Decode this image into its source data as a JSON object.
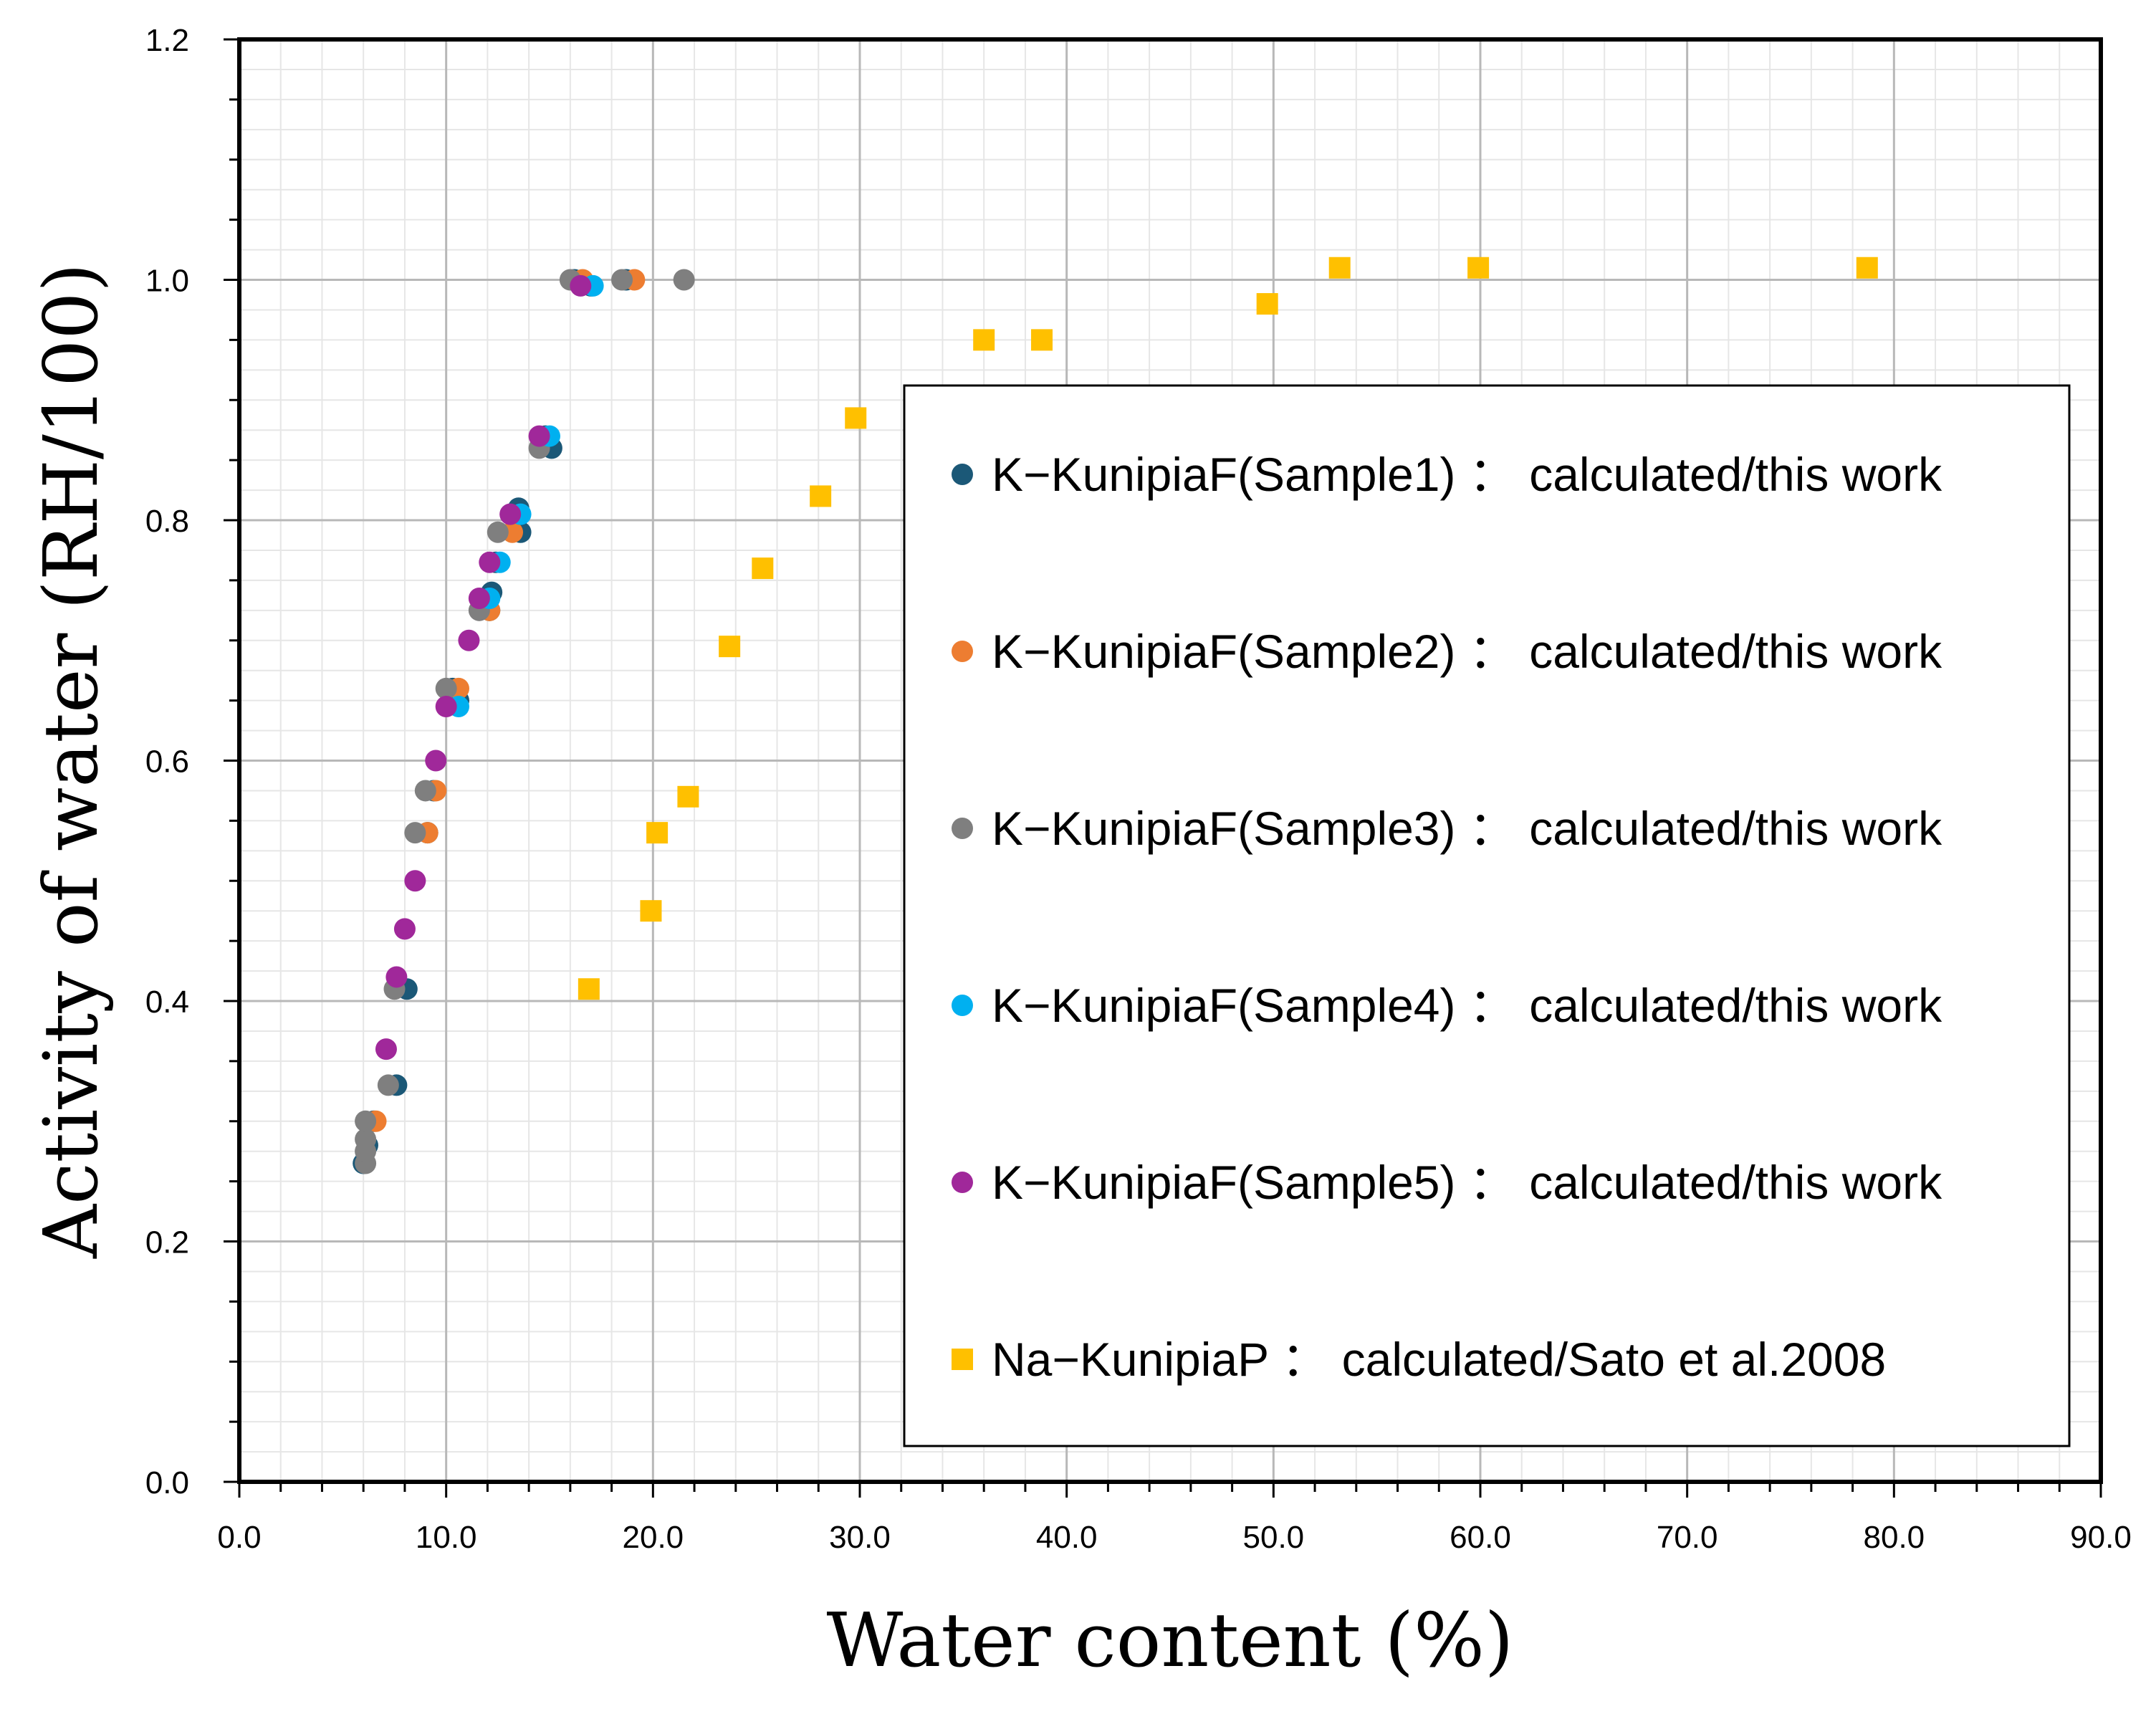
{
  "chart_data": {
    "type": "scatter",
    "title": "",
    "xlabel": "Water content (%)",
    "ylabel": "Activity of water (RH/100)",
    "xlim": [
      0,
      90
    ],
    "ylim": [
      0,
      1.2
    ],
    "x_ticks": [
      0,
      10,
      20,
      30,
      40,
      50,
      60,
      70,
      80,
      90
    ],
    "y_ticks": [
      0,
      0.2,
      0.4,
      0.6,
      0.8,
      1.0,
      1.2
    ],
    "x_tick_labels": [
      "0.0",
      "10.0",
      "20.0",
      "30.0",
      "40.0",
      "50.0",
      "60.0",
      "70.0",
      "80.0",
      "90.0"
    ],
    "y_tick_labels": [
      "0.0",
      "0.2",
      "0.4",
      "0.6",
      "0.8",
      "1.0",
      "1.2"
    ],
    "grid": true,
    "legend_position": "right",
    "series": [
      {
        "name": "K-KunipiaF(Sample1) : calculated/this work",
        "label_main": "K−KunipiaF(Sample1)",
        "label_suffix": "calculated/this work",
        "marker": "circle",
        "color": "#1b5877",
        "points": [
          [
            6.0,
            0.265
          ],
          [
            6.2,
            0.28
          ],
          [
            6.5,
            0.3
          ],
          [
            7.6,
            0.33
          ],
          [
            8.1,
            0.41
          ],
          [
            9.1,
            0.54
          ],
          [
            9.4,
            0.575
          ],
          [
            10.3,
            0.66
          ],
          [
            10.6,
            0.65
          ],
          [
            12.1,
            0.725
          ],
          [
            12.2,
            0.74
          ],
          [
            12.4,
            0.765
          ],
          [
            13.6,
            0.79
          ],
          [
            13.5,
            0.81
          ],
          [
            15.1,
            0.86
          ],
          [
            14.8,
            0.87
          ],
          [
            16.2,
            1.0
          ],
          [
            17.0,
            0.995
          ],
          [
            18.7,
            1.0
          ]
        ]
      },
      {
        "name": "K-KunipiaF(Sample2) : calculated/this work",
        "label_main": "K−KunipiaF(Sample2)",
        "label_suffix": "calculated/this work",
        "marker": "circle",
        "color": "#ed7d31",
        "points": [
          [
            6.6,
            0.3
          ],
          [
            9.1,
            0.54
          ],
          [
            9.5,
            0.575
          ],
          [
            10.6,
            0.66
          ],
          [
            12.1,
            0.725
          ],
          [
            13.2,
            0.79
          ],
          [
            16.6,
            1.0
          ],
          [
            19.1,
            1.0
          ]
        ]
      },
      {
        "name": "K-KunipiaF(Sample3) : calculated/this work",
        "label_main": "K−KunipiaF(Sample3)",
        "label_suffix": "calculated/this work",
        "marker": "circle",
        "color": "#7f7f7f",
        "points": [
          [
            6.1,
            0.265
          ],
          [
            6.1,
            0.275
          ],
          [
            6.1,
            0.285
          ],
          [
            6.1,
            0.3
          ],
          [
            7.2,
            0.33
          ],
          [
            7.5,
            0.41
          ],
          [
            8.5,
            0.54
          ],
          [
            9.0,
            0.575
          ],
          [
            10.0,
            0.66
          ],
          [
            11.6,
            0.725
          ],
          [
            12.5,
            0.79
          ],
          [
            14.5,
            0.86
          ],
          [
            16.0,
            1.0
          ],
          [
            18.5,
            1.0
          ],
          [
            21.5,
            1.0
          ]
        ]
      },
      {
        "name": "K-KunipiaF(Sample4) : calculated/this work",
        "label_main": "K−KunipiaF(Sample4)",
        "label_suffix": "calculated/this work",
        "marker": "circle",
        "color": "#00b0f0",
        "points": [
          [
            10.6,
            0.645
          ],
          [
            12.1,
            0.735
          ],
          [
            12.6,
            0.765
          ],
          [
            13.6,
            0.805
          ],
          [
            15.0,
            0.87
          ],
          [
            17.1,
            0.995
          ]
        ]
      },
      {
        "name": "K-KunipiaF(Sample5) : calculated/this work",
        "label_main": "K−KunipiaF(Sample5)",
        "label_suffix": "calculated/this work",
        "marker": "circle",
        "color": "#a0289a",
        "points": [
          [
            7.1,
            0.36
          ],
          [
            7.6,
            0.42
          ],
          [
            8.0,
            0.46
          ],
          [
            8.5,
            0.5
          ],
          [
            9.5,
            0.6
          ],
          [
            10.0,
            0.645
          ],
          [
            11.1,
            0.7
          ],
          [
            11.6,
            0.735
          ],
          [
            12.1,
            0.765
          ],
          [
            13.1,
            0.805
          ],
          [
            14.5,
            0.87
          ],
          [
            16.5,
            0.995
          ]
        ]
      },
      {
        "name": "Na-KunipiaP : calculated/Sato et al.2008",
        "label_main": "Na−KunipiaP",
        "label_suffix": "calculated/Sato et al.2008",
        "marker": "square",
        "color": "#ffc000",
        "points": [
          [
            16.9,
            0.41
          ],
          [
            19.9,
            0.475
          ],
          [
            20.2,
            0.54
          ],
          [
            21.7,
            0.57
          ],
          [
            23.7,
            0.695
          ],
          [
            25.3,
            0.76
          ],
          [
            28.1,
            0.82
          ],
          [
            29.8,
            0.885
          ],
          [
            36.0,
            0.95
          ],
          [
            38.8,
            0.95
          ],
          [
            49.7,
            0.98
          ],
          [
            53.2,
            1.01
          ],
          [
            59.9,
            1.01
          ],
          [
            78.7,
            1.01
          ]
        ]
      }
    ]
  }
}
